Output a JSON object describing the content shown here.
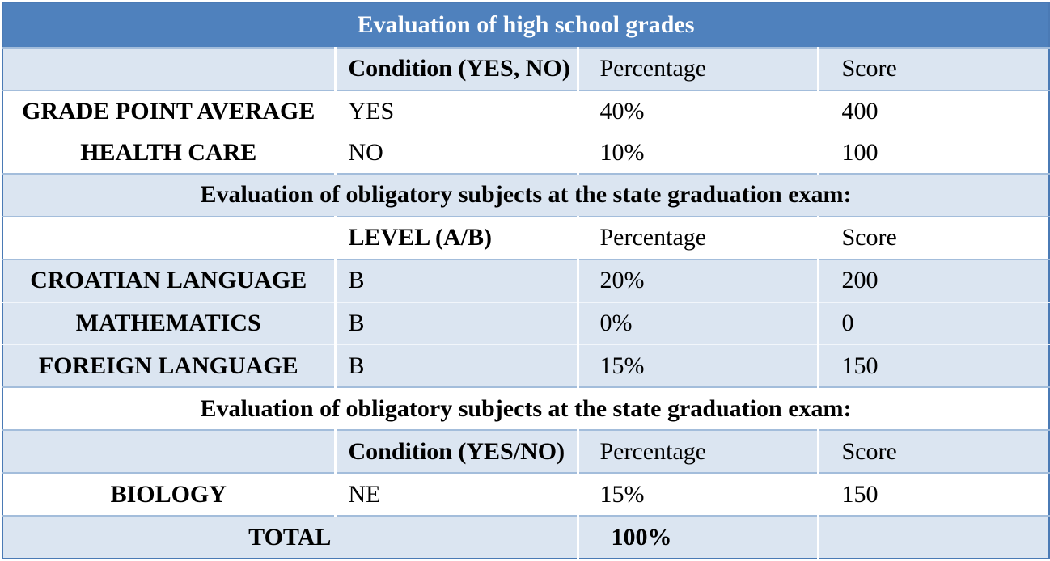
{
  "colors": {
    "header_bg": "#4F81BD",
    "band_bg": "#DBE5F1",
    "row_border": "#A3BDDB",
    "band_divider": "#F2F6FB",
    "outer_border": "#4A7AB5",
    "col_divider": "#FFFFFF",
    "title_text": "#FFFFFF",
    "body_text": "#000000"
  },
  "table": {
    "title": "Evaluation of high school grades",
    "sections": [
      {
        "header": [
          "Condition (YES, NO)",
          "Percentage",
          "Score"
        ],
        "rows": [
          {
            "label": "GRADE POINT AVERAGE",
            "value": "YES",
            "percentage": "40%",
            "score": "400"
          },
          {
            "label": "HEALTH CARE",
            "value": "NO",
            "percentage": "10%",
            "score": "100"
          }
        ]
      },
      {
        "title": "Evaluation of obligatory subjects at the state graduation exam:",
        "header": [
          "LEVEL (A/B)",
          "Percentage",
          "Score"
        ],
        "rows": [
          {
            "label": "CROATIAN LANGUAGE",
            "value": "B",
            "percentage": "20%",
            "score": "200"
          },
          {
            "label": "MATHEMATICS",
            "value": "B",
            "percentage": "0%",
            "score": "0"
          },
          {
            "label": "FOREIGN LANGUAGE",
            "value": "B",
            "percentage": "15%",
            "score": "150"
          }
        ]
      },
      {
        "title": "Evaluation of obligatory subjects at the state graduation exam:",
        "header": [
          "Condition (YES/NO)",
          "Percentage",
          "Score"
        ],
        "rows": [
          {
            "label": "BIOLOGY",
            "value": "NE",
            "percentage": "15%",
            "score": "150"
          }
        ]
      }
    ],
    "total": {
      "label": "TOTAL",
      "percentage": "100%"
    }
  }
}
